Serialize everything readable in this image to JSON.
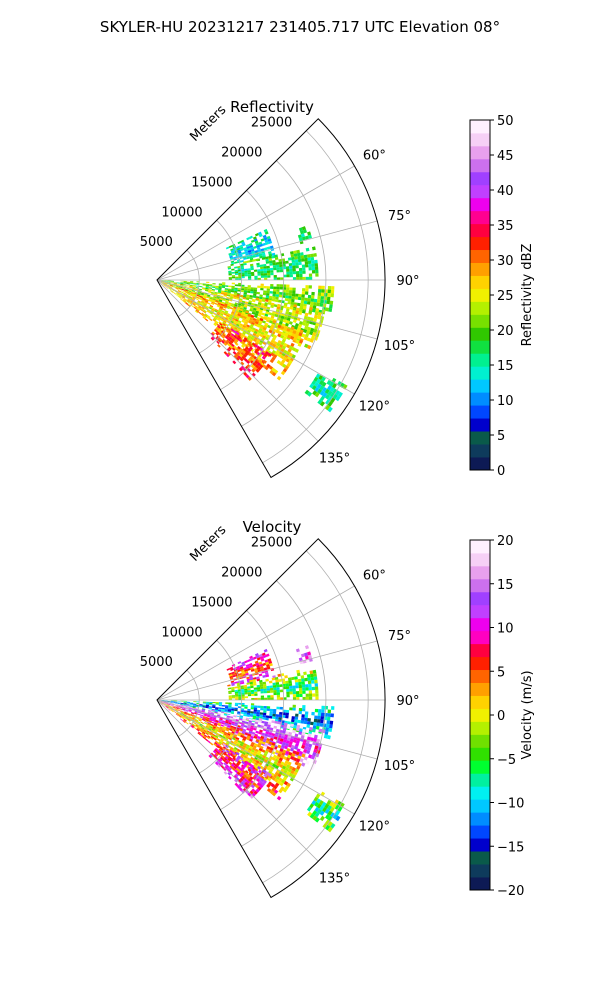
{
  "figure": {
    "suptitle": "SKYLER-HU  20231217  231405.717 UTC Elevation 08°"
  },
  "chart_data": [
    {
      "type": "heatmap",
      "projection": "polar-sector",
      "title": "Reflectivity",
      "radial_label": "Meters",
      "radial_ticks": [
        "5000",
        "10000",
        "15000",
        "20000",
        "25000"
      ],
      "radial_tick_values": [
        5000,
        10000,
        15000,
        20000,
        25000
      ],
      "rmax": 27000,
      "azimuth_range": [
        45,
        150
      ],
      "azimuth_ticks": [
        "60°",
        "75°",
        "90°",
        "105°",
        "120°",
        "135°"
      ],
      "azimuth_tick_values": [
        60,
        75,
        90,
        105,
        120,
        135
      ],
      "grid": true,
      "colorbar": {
        "label": "Reflectivity dBZ",
        "ticks": [
          "0",
          "5",
          "10",
          "15",
          "20",
          "25",
          "30",
          "35",
          "40",
          "45",
          "50"
        ],
        "min": 0,
        "max": 50,
        "colors": [
          "#0d1a55",
          "#0e3b5c",
          "#0a5a4a",
          "#0000cc",
          "#0047ff",
          "#008cff",
          "#00c8ff",
          "#00f0d0",
          "#00f090",
          "#10e040",
          "#30c800",
          "#78e000",
          "#b4f000",
          "#f0f000",
          "#ffd200",
          "#ffa000",
          "#ff6400",
          "#ff2000",
          "#ff0040",
          "#ff0090",
          "#ee00ee",
          "#c040ff",
          "#a040ff",
          "#cc70ee",
          "#e8a0ee",
          "#f6d0f6",
          "#fff0ff"
        ]
      },
      "blobs": [
        {
          "az": 72,
          "r0": 9000,
          "r1": 14000,
          "w": 7,
          "v": 14
        },
        {
          "az": 73,
          "r0": 17500,
          "r1": 19000,
          "w": 3,
          "v": 17
        },
        {
          "az": 84,
          "r0": 8500,
          "r1": 19000,
          "w": 6,
          "v": 18
        },
        {
          "az": 97,
          "r0": 500,
          "r1": 21000,
          "w": 5,
          "v": 21
        },
        {
          "az": 107,
          "r0": 500,
          "r1": 20000,
          "w": 7,
          "v": 24
        },
        {
          "az": 119,
          "r0": 500,
          "r1": 18500,
          "w": 10,
          "v": 27
        },
        {
          "az": 130,
          "r0": 9000,
          "r1": 16000,
          "w": 7,
          "v": 32
        },
        {
          "az": 123,
          "r0": 22000,
          "r1": 25500,
          "w": 4,
          "v": 17
        }
      ]
    },
    {
      "type": "heatmap",
      "projection": "polar-sector",
      "title": "Velocity",
      "radial_label": "Meters",
      "radial_ticks": [
        "5000",
        "10000",
        "15000",
        "20000",
        "25000"
      ],
      "radial_tick_values": [
        5000,
        10000,
        15000,
        20000,
        25000
      ],
      "rmax": 27000,
      "azimuth_range": [
        45,
        150
      ],
      "azimuth_ticks": [
        "60°",
        "75°",
        "90°",
        "105°",
        "120°",
        "135°"
      ],
      "azimuth_tick_values": [
        60,
        75,
        90,
        105,
        120,
        135
      ],
      "grid": true,
      "colorbar": {
        "label": "Velocity (m/s)",
        "ticks": [
          "−20",
          "−15",
          "−10",
          "−5",
          "0",
          "5",
          "10",
          "15",
          "20"
        ],
        "min": -20,
        "max": 20,
        "colors": [
          "#0d1a55",
          "#0e3b5c",
          "#0a5a4a",
          "#0000cc",
          "#0047ff",
          "#008cff",
          "#00c8ff",
          "#00f0f0",
          "#00f0a0",
          "#00ff30",
          "#30e000",
          "#70e000",
          "#b4f000",
          "#f0f000",
          "#ffd200",
          "#ffa000",
          "#ff6400",
          "#ff2000",
          "#ff0040",
          "#ff00c0",
          "#ee00ee",
          "#c040ff",
          "#a040ff",
          "#cc70ee",
          "#e8a0ee",
          "#f6d0f6",
          "#fff0ff"
        ]
      },
      "blobs": [
        {
          "az": 72,
          "r0": 9000,
          "r1": 14000,
          "w": 7,
          "v": 8
        },
        {
          "az": 73,
          "r0": 17500,
          "r1": 19000,
          "w": 3,
          "v": 15
        },
        {
          "az": 84,
          "r0": 8500,
          "r1": 19000,
          "w": 6,
          "v": -3
        },
        {
          "az": 97,
          "r0": 500,
          "r1": 21000,
          "w": 5,
          "v": -10
        },
        {
          "az": 107,
          "r0": 500,
          "r1": 20000,
          "w": 7,
          "v": 14
        },
        {
          "az": 119,
          "r0": 500,
          "r1": 18500,
          "w": 10,
          "v": 3
        },
        {
          "az": 130,
          "r0": 9000,
          "r1": 16000,
          "w": 7,
          "v": 10
        },
        {
          "az": 123,
          "r0": 22000,
          "r1": 25500,
          "w": 4,
          "v": -5
        }
      ]
    }
  ]
}
